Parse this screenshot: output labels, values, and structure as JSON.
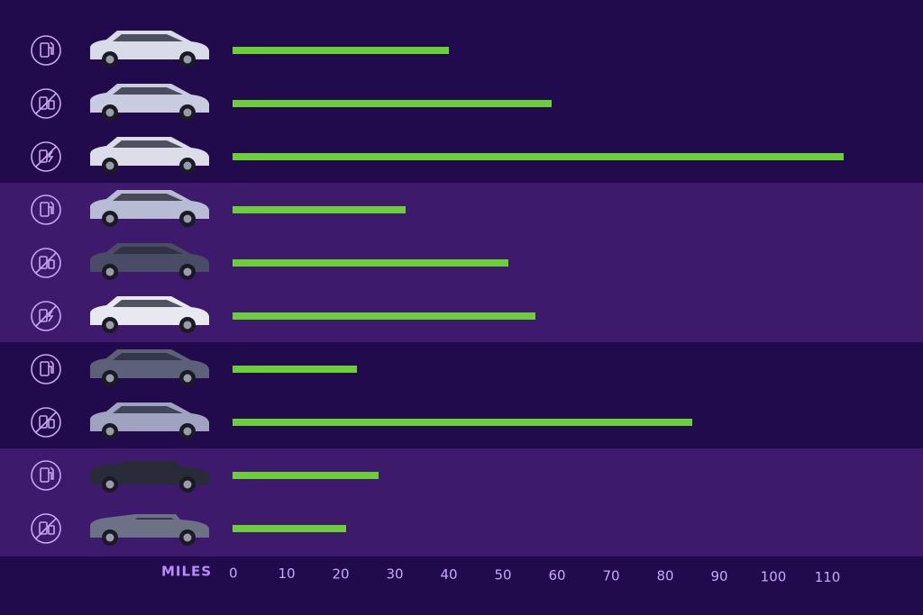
{
  "chart_data": {
    "type": "bar",
    "orientation": "horizontal",
    "x_label": "MILES",
    "categories": [
      null,
      null,
      null,
      null,
      null,
      null,
      null,
      null,
      null,
      null
    ],
    "values": [
      40,
      59,
      113,
      32,
      51,
      56,
      23,
      85,
      27,
      21
    ],
    "color": "#6ccf3a",
    "xlim": [
      0,
      120
    ],
    "xticks": [
      0,
      10,
      20,
      30,
      40,
      50,
      60,
      70,
      80,
      90,
      100,
      110
    ],
    "grid": false
  }
}
